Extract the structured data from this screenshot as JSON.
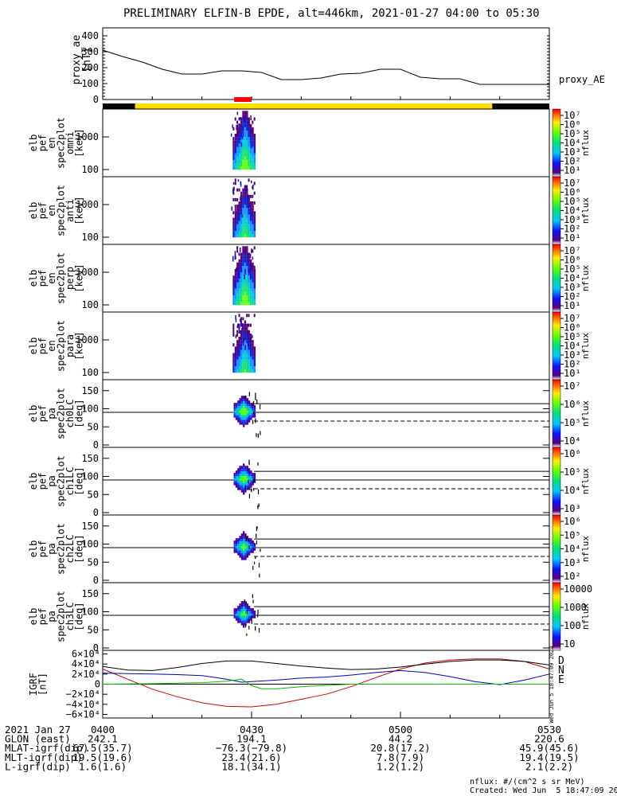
{
  "title": "PRELIMINARY ELFIN-B EPDE, alt=446km, 2021-01-27 04:00 to 05:30",
  "chart_data": {
    "type": "line",
    "x_range": [
      "2021-01-27 04:00",
      "2021-01-27 05:30"
    ],
    "proxy_ae": {
      "ylabel_lines": [
        "proxy_ae",
        "[nT]"
      ],
      "series_label": "proxy_AE",
      "yticks": [
        "400",
        "300",
        "200",
        "100",
        "0"
      ],
      "ylim": [
        0,
        400
      ],
      "t_min": [
        0,
        4,
        8,
        12,
        16,
        20,
        24,
        28,
        32,
        36,
        40,
        44,
        48,
        52,
        56,
        60,
        64,
        68,
        72,
        76,
        80,
        84,
        88,
        90
      ],
      "values": [
        310,
        270,
        235,
        190,
        160,
        160,
        180,
        180,
        170,
        125,
        125,
        135,
        160,
        165,
        190,
        190,
        140,
        130,
        130,
        95,
        95,
        95,
        95,
        95
      ]
    },
    "bars": {
      "science_zone_color": "#ffdf00",
      "science_zone_t": [
        6.5,
        78.5
      ],
      "epd_marker_color": "#ff0000",
      "epd_marker_t": [
        26.5,
        30.0
      ]
    },
    "spectrogram_panels": [
      {
        "ylabel_lines": [
          "elb",
          "pef",
          "en",
          "spec2plot",
          "omni",
          "[keV]"
        ],
        "yticks": [
          "1000",
          "100"
        ],
        "cbar_label": "nflux",
        "cbar_ticks": [
          "10⁷",
          "10⁶",
          "10⁵",
          "10⁴",
          "10³",
          "10²",
          "10¹"
        ]
      },
      {
        "ylabel_lines": [
          "elb",
          "pef",
          "en",
          "spec2plot",
          "anti",
          "[keV]"
        ],
        "yticks": [
          "1000",
          "100"
        ],
        "cbar_label": "nflux",
        "cbar_ticks": [
          "10⁷",
          "10⁶",
          "10⁵",
          "10⁴",
          "10³",
          "10²",
          "10¹"
        ]
      },
      {
        "ylabel_lines": [
          "elb",
          "pef",
          "en",
          "spec2plot",
          "perp",
          "[keV]"
        ],
        "yticks": [
          "1000",
          "100"
        ],
        "cbar_label": "nflux",
        "cbar_ticks": [
          "10⁷",
          "10⁶",
          "10⁵",
          "10⁴",
          "10³",
          "10²",
          "10¹"
        ]
      },
      {
        "ylabel_lines": [
          "elb",
          "pef",
          "en",
          "spec2plot",
          "para",
          "[keV]"
        ],
        "yticks": [
          "1000",
          "100"
        ],
        "cbar_label": "nflux",
        "cbar_ticks": [
          "10⁷",
          "10⁶",
          "10⁵",
          "10⁴",
          "10³",
          "10²",
          "10¹"
        ]
      }
    ],
    "pitch_angle_panels": [
      {
        "ylabel_lines": [
          "elb",
          "pef",
          "pa",
          "spec2plot",
          "ch0LC",
          "[deg]"
        ],
        "yticks": [
          "150",
          "100",
          "50",
          "0"
        ],
        "cbar_label": "nflux",
        "cbar_ticks": [
          "10⁷",
          "10⁶",
          "10⁵",
          "10⁴"
        ]
      },
      {
        "ylabel_lines": [
          "elb",
          "pef",
          "pa",
          "spec2plot",
          "ch1LC",
          "[deg]"
        ],
        "yticks": [
          "150",
          "100",
          "50",
          "0"
        ],
        "cbar_label": "nflux",
        "cbar_ticks": [
          "10⁶",
          "10⁵",
          "10⁴",
          "10³"
        ]
      },
      {
        "ylabel_lines": [
          "elb",
          "pef",
          "pa",
          "spec2plot",
          "ch2LC",
          "[deg]"
        ],
        "yticks": [
          "150",
          "100",
          "50",
          "0"
        ],
        "cbar_label": "nflux",
        "cbar_ticks": [
          "10⁶",
          "10⁵",
          "10⁴",
          "10³",
          "10²"
        ]
      },
      {
        "ylabel_lines": [
          "elb",
          "pef",
          "pa",
          "spec2plot",
          "ch3LC",
          "[deg]"
        ],
        "yticks": [
          "150",
          "100",
          "50",
          "0"
        ],
        "cbar_label": "nflux",
        "cbar_ticks": [
          "10000",
          "1000",
          "100",
          "10"
        ]
      }
    ],
    "igrf": {
      "ylabel_lines": [
        "IGRF",
        "[nT]"
      ],
      "ylim": [
        -60000,
        60000
      ],
      "yticks": [
        "6×10⁴",
        "4×10⁴",
        "2×10⁴",
        "0",
        "−2×10⁴",
        "−4×10⁴",
        "−6×10⁴"
      ],
      "series": [
        {
          "name": "D",
          "color": "#d00000",
          "t_min": [
            0,
            5,
            10,
            15,
            20,
            25,
            30,
            35,
            40,
            45,
            50,
            55,
            60,
            65,
            70,
            75,
            80,
            85,
            90
          ],
          "values": [
            30000,
            10000,
            -10000,
            -25000,
            -37000,
            -44000,
            -45000,
            -40000,
            -30000,
            -20000,
            -5000,
            13000,
            30000,
            42000,
            48000,
            50000,
            50000,
            45000,
            30000
          ]
        },
        {
          "name": "N",
          "color": "#0000d0",
          "t_min": [
            0,
            5,
            10,
            15,
            20,
            25,
            28,
            30,
            35,
            40,
            45,
            50,
            55,
            60,
            65,
            70,
            75,
            80,
            85,
            90
          ],
          "values": [
            22000,
            21000,
            20000,
            19000,
            17000,
            10000,
            4000,
            5000,
            8000,
            12000,
            14000,
            18000,
            23000,
            27000,
            23000,
            15000,
            5000,
            -1000,
            8000,
            20000
          ]
        },
        {
          "name": "E",
          "color": "#00c000",
          "t_min": [
            0,
            10,
            20,
            25,
            28,
            30,
            32,
            35,
            40,
            50,
            60,
            70,
            80,
            90
          ],
          "values": [
            0,
            1000,
            3000,
            6000,
            10000,
            -3000,
            -9000,
            -9000,
            -5000,
            0,
            0,
            0,
            0,
            0
          ]
        },
        {
          "name": "",
          "color": "#000000",
          "t_min": [
            0,
            5,
            10,
            15,
            20,
            25,
            30,
            35,
            40,
            45,
            50,
            55,
            60,
            65,
            70,
            75,
            80,
            85,
            90
          ],
          "values": [
            35000,
            28000,
            27000,
            33000,
            41000,
            46000,
            46000,
            41000,
            36000,
            32000,
            29000,
            30000,
            34000,
            40000,
            45000,
            48000,
            48000,
            45000,
            38000
          ]
        }
      ]
    },
    "x_axis": {
      "rows": [
        {
          "label": "2021 Jan 27",
          "values": [
            "0400",
            "0430",
            "0500",
            "0530"
          ]
        },
        {
          "label": "GLON (east)",
          "values": [
            "242.1",
            "194.1",
            "44.2",
            "220.6"
          ]
        },
        {
          "label": "MLAT-igrf(dip)",
          "values": [
            "67.5(35.7)",
            "−76.3(−79.8)",
            "20.8(17.2)",
            "45.9(45.6)"
          ]
        },
        {
          "label": "MLT-igrf(dip)",
          "values": [
            "19.5(19.6)",
            "23.4(21.6)",
            "7.8(7.9)",
            "19.4(19.5)"
          ]
        },
        {
          "label": "L-igrf(dip)",
          "values": [
            "1.6(1.6)",
            "18.1(34.1)",
            "1.2(1.2)",
            "2.1(2.2)"
          ]
        }
      ]
    }
  },
  "side_stamp": "Wed Jun  5 18:47:09 2024",
  "footer": {
    "units_note": "nflux: #/(cm^2 s sr MeV)",
    "created": "Created: Wed Jun  5 18:47:09 2024"
  }
}
